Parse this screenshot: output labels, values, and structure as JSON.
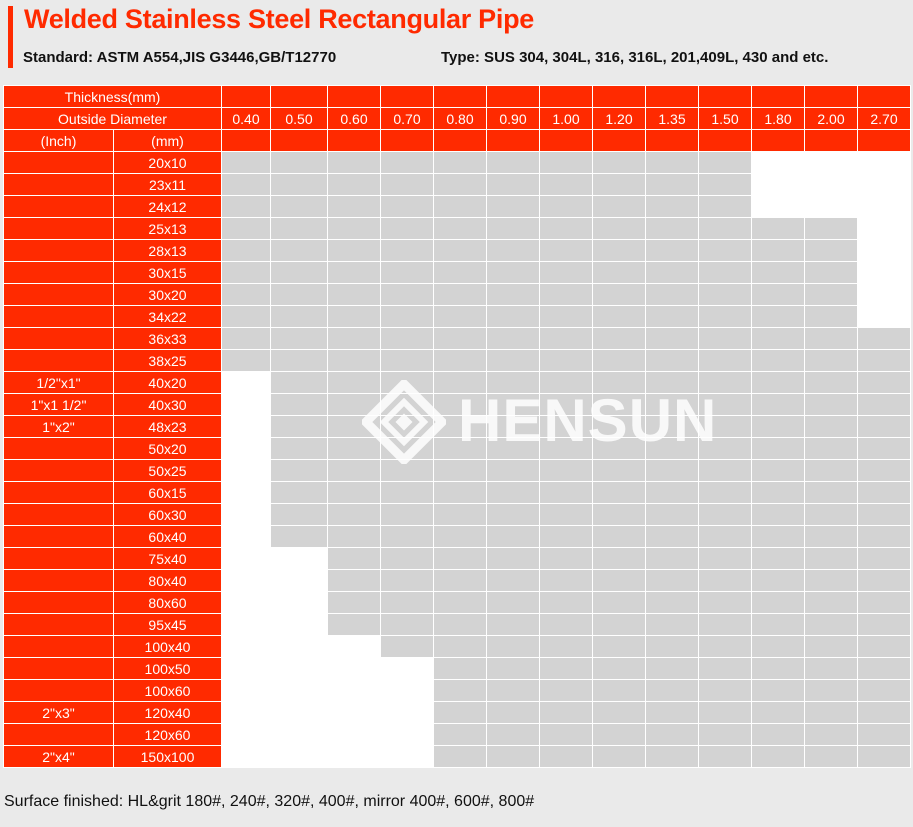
{
  "title": "Welded Stainless Steel Rectangular Pipe",
  "standard": "Standard: ASTM A554,JIS G3446,GB/T12770",
  "type": "Type: SUS 304, 304L, 316, 316L, 201,409L, 430 and etc.",
  "header": {
    "thickness_label": "Thickness(mm)",
    "outside_diameter_label": "Outside Diameter",
    "inch_label": "(Inch)",
    "mm_label": "(mm)",
    "thicknesses": [
      "0.40",
      "0.50",
      "0.60",
      "0.70",
      "0.80",
      "0.90",
      "1.00",
      "1.20",
      "1.35",
      "1.50",
      "1.80",
      "2.00",
      "2.70"
    ]
  },
  "rows": [
    {
      "inch": "",
      "mm": "20x10",
      "available": [
        0,
        0,
        0,
        0,
        0,
        0,
        0,
        0,
        0,
        0,
        1,
        1,
        1
      ]
    },
    {
      "inch": "",
      "mm": "23x11",
      "available": [
        0,
        0,
        0,
        0,
        0,
        0,
        0,
        0,
        0,
        0,
        1,
        1,
        1
      ]
    },
    {
      "inch": "",
      "mm": "24x12",
      "available": [
        0,
        0,
        0,
        0,
        0,
        0,
        0,
        0,
        0,
        0,
        1,
        1,
        1
      ]
    },
    {
      "inch": "",
      "mm": "25x13",
      "available": [
        0,
        0,
        0,
        0,
        0,
        0,
        0,
        0,
        0,
        0,
        0,
        0,
        1
      ]
    },
    {
      "inch": "",
      "mm": "28x13",
      "available": [
        0,
        0,
        0,
        0,
        0,
        0,
        0,
        0,
        0,
        0,
        0,
        0,
        1
      ]
    },
    {
      "inch": "",
      "mm": "30x15",
      "available": [
        0,
        0,
        0,
        0,
        0,
        0,
        0,
        0,
        0,
        0,
        0,
        0,
        1
      ]
    },
    {
      "inch": "",
      "mm": "30x20",
      "available": [
        0,
        0,
        0,
        0,
        0,
        0,
        0,
        0,
        0,
        0,
        0,
        0,
        1
      ]
    },
    {
      "inch": "",
      "mm": "34x22",
      "available": [
        0,
        0,
        0,
        0,
        0,
        0,
        0,
        0,
        0,
        0,
        0,
        0,
        1
      ]
    },
    {
      "inch": "",
      "mm": "36x33",
      "available": [
        0,
        0,
        0,
        0,
        0,
        0,
        0,
        0,
        0,
        0,
        0,
        0,
        0
      ]
    },
    {
      "inch": "",
      "mm": "38x25",
      "available": [
        0,
        0,
        0,
        0,
        0,
        0,
        0,
        0,
        0,
        0,
        0,
        0,
        0
      ]
    },
    {
      "inch": "1/2\"x1\"",
      "mm": "40x20",
      "available": [
        1,
        0,
        0,
        0,
        0,
        0,
        0,
        0,
        0,
        0,
        0,
        0,
        0
      ]
    },
    {
      "inch": "1\"x1 1/2\"",
      "mm": "40x30",
      "available": [
        1,
        0,
        0,
        0,
        0,
        0,
        0,
        0,
        0,
        0,
        0,
        0,
        0
      ]
    },
    {
      "inch": "1\"x2\"",
      "mm": "48x23",
      "available": [
        1,
        0,
        0,
        0,
        0,
        0,
        0,
        0,
        0,
        0,
        0,
        0,
        0
      ]
    },
    {
      "inch": "",
      "mm": "50x20",
      "available": [
        1,
        0,
        0,
        0,
        0,
        0,
        0,
        0,
        0,
        0,
        0,
        0,
        0
      ]
    },
    {
      "inch": "",
      "mm": "50x25",
      "available": [
        1,
        0,
        0,
        0,
        0,
        0,
        0,
        0,
        0,
        0,
        0,
        0,
        0
      ]
    },
    {
      "inch": "",
      "mm": "60x15",
      "available": [
        1,
        0,
        0,
        0,
        0,
        0,
        0,
        0,
        0,
        0,
        0,
        0,
        0
      ]
    },
    {
      "inch": "",
      "mm": "60x30",
      "available": [
        1,
        0,
        0,
        0,
        0,
        0,
        0,
        0,
        0,
        0,
        0,
        0,
        0
      ]
    },
    {
      "inch": "",
      "mm": "60x40",
      "available": [
        1,
        0,
        0,
        0,
        0,
        0,
        0,
        0,
        0,
        0,
        0,
        0,
        0
      ]
    },
    {
      "inch": "",
      "mm": "75x40",
      "available": [
        1,
        1,
        0,
        0,
        0,
        0,
        0,
        0,
        0,
        0,
        0,
        0,
        0
      ]
    },
    {
      "inch": "",
      "mm": "80x40",
      "available": [
        1,
        1,
        0,
        0,
        0,
        0,
        0,
        0,
        0,
        0,
        0,
        0,
        0
      ]
    },
    {
      "inch": "",
      "mm": "80x60",
      "available": [
        1,
        1,
        0,
        0,
        0,
        0,
        0,
        0,
        0,
        0,
        0,
        0,
        0
      ]
    },
    {
      "inch": "",
      "mm": "95x45",
      "available": [
        1,
        1,
        0,
        0,
        0,
        0,
        0,
        0,
        0,
        0,
        0,
        0,
        0
      ]
    },
    {
      "inch": "",
      "mm": "100x40",
      "available": [
        1,
        1,
        1,
        0,
        0,
        0,
        0,
        0,
        0,
        0,
        0,
        0,
        0
      ]
    },
    {
      "inch": "",
      "mm": "100x50",
      "available": [
        1,
        1,
        1,
        1,
        0,
        0,
        0,
        0,
        0,
        0,
        0,
        0,
        0
      ]
    },
    {
      "inch": "",
      "mm": "100x60",
      "available": [
        1,
        1,
        1,
        1,
        0,
        0,
        0,
        0,
        0,
        0,
        0,
        0,
        0
      ]
    },
    {
      "inch": "2\"x3\"",
      "mm": "120x40",
      "available": [
        1,
        1,
        1,
        1,
        0,
        0,
        0,
        0,
        0,
        0,
        0,
        0,
        0
      ]
    },
    {
      "inch": "",
      "mm": "120x60",
      "available": [
        1,
        1,
        1,
        1,
        0,
        0,
        0,
        0,
        0,
        0,
        0,
        0,
        0
      ]
    },
    {
      "inch": "2\"x4\"",
      "mm": "150x100",
      "available": [
        1,
        1,
        1,
        1,
        0,
        0,
        0,
        0,
        0,
        0,
        0,
        0,
        0
      ]
    }
  ],
  "footer": "Surface finished: HL&grit 180#, 240#, 320#, 400#, mirror 400#, 600#, 800#",
  "watermark": "HENSUN",
  "colors": {
    "accent": "#ff2a00",
    "unavailable_cell": "#d3d3d3",
    "available_cell": "#ffffff",
    "background": "#eaeaea"
  }
}
